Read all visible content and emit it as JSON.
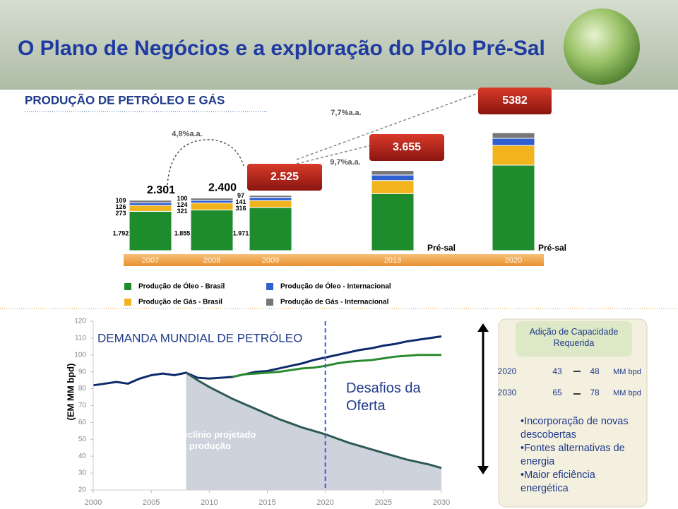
{
  "header": {
    "title": "O Plano de Negócios e a exploração do Pólo Pré-Sal"
  },
  "chart_data": [
    {
      "type": "bar",
      "stacked": true,
      "title": "PRODUÇÃO  DE PETRÓLEO E GÁS",
      "categories": [
        "2007",
        "2008",
        "2009",
        "2013",
        "2020"
      ],
      "series": [
        {
          "name": "Produção de Óleo - Brasil",
          "color": "#1e8c2c",
          "values": [
            1792,
            1855,
            1971,
            2600,
            3900
          ],
          "value_labels": [
            "1.792",
            "1.855",
            "1.971",
            null,
            null
          ]
        },
        {
          "name": "Produção de Gás - Brasil",
          "color": "#f2b41e",
          "values": [
            273,
            321,
            316,
            600,
            900
          ],
          "value_labels": [
            "273",
            "321",
            "316",
            null,
            null
          ]
        },
        {
          "name": "Produção de Óleo - Internacional",
          "color": "#2f5fd0",
          "values": [
            126,
            124,
            141,
            250,
            330
          ],
          "value_labels": [
            "126",
            "124",
            "141",
            null,
            null
          ]
        },
        {
          "name": "Produção de Gás - Internacional",
          "color": "#777777",
          "values": [
            109,
            100,
            97,
            205,
            252
          ],
          "value_labels": [
            "109",
            "100",
            "97",
            null,
            null
          ]
        }
      ],
      "totals": {
        "values": [
          2301,
          2400,
          2525,
          3655,
          5382
        ],
        "value_labels": [
          "2.301",
          "2.400",
          "2.525",
          "3.655",
          "5382"
        ]
      },
      "annotations": [
        "4,8%a.a.",
        "9,7%a.a.",
        "7,7%a.a.",
        "Pré-sal",
        "Pré-sal"
      ]
    },
    {
      "type": "line",
      "title": "DEMANDA MUNDIAL DE PETRÓLEO",
      "y_label": "(EM MM bpd)",
      "x": [
        2000,
        2001,
        2002,
        2003,
        2004,
        2005,
        2006,
        2007,
        2008,
        2009,
        2010,
        2011,
        2012,
        2013,
        2014,
        2015,
        2016,
        2017,
        2018,
        2019,
        2020,
        2021,
        2022,
        2023,
        2024,
        2025,
        2026,
        2027,
        2028,
        2029,
        2030
      ],
      "series": [
        {
          "color": "#0d2a6b",
          "values": [
            82,
            83,
            84,
            83,
            86,
            88,
            89,
            88,
            89.5,
            86.5,
            86,
            86.5,
            87,
            88.5,
            90,
            90.5,
            92,
            93.5,
            95,
            97,
            98.5,
            100,
            101.5,
            103,
            104,
            105.5,
            106.5,
            108,
            109,
            110,
            111
          ]
        },
        {
          "color": "#2a8a2e",
          "values": [
            null,
            null,
            null,
            null,
            null,
            null,
            null,
            null,
            null,
            null,
            null,
            null,
            87,
            88.5,
            89,
            89.5,
            90,
            91,
            92,
            92.5,
            93.5,
            95,
            96,
            96.5,
            97,
            98,
            99,
            99.5,
            100,
            100,
            100
          ]
        },
        {
          "color": "#2d5a56",
          "area": true,
          "values": [
            null,
            null,
            null,
            null,
            null,
            null,
            null,
            null,
            89.5,
            85,
            81,
            77.5,
            74,
            71,
            68,
            65,
            62,
            59.5,
            57,
            55,
            53,
            50.5,
            48,
            46,
            44,
            42,
            40,
            38,
            36.5,
            35,
            33
          ]
        }
      ],
      "xlim": [
        2000,
        2030
      ],
      "ylim": [
        20,
        120
      ],
      "xticks": [
        2000,
        2005,
        2010,
        2015,
        2020,
        2025,
        2030
      ],
      "yticks": [
        20,
        30,
        40,
        50,
        60,
        70,
        80,
        90,
        100,
        110,
        120
      ],
      "vline": 2020,
      "annotations": [
        "Desafios da Oferta",
        "Declínio projetado na produção"
      ]
    }
  ],
  "panel": {
    "title": "Adição de Capacidade Requerida",
    "rows": [
      [
        "2020",
        "43",
        "48",
        "MM bpd"
      ],
      [
        "2030",
        "65",
        "78",
        "MM bpd"
      ]
    ],
    "bullets": [
      "•Incorporação de novas descobertas",
      "•Fontes alternativas de energia",
      "•Maior eficiência energética"
    ]
  }
}
